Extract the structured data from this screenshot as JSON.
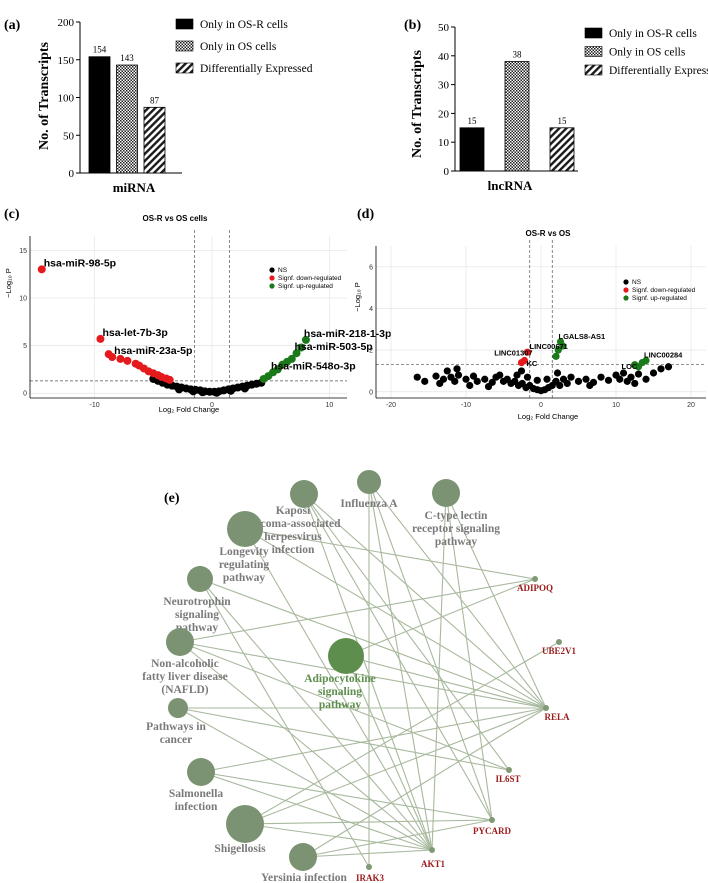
{
  "chart_data": [
    {
      "panel": "(a)",
      "type": "bar",
      "categories": [
        "miRNA"
      ],
      "series": [
        {
          "name": "Only in OS-R cells",
          "values": [
            154
          ],
          "pattern": "solid"
        },
        {
          "name": "Only in OS cells",
          "values": [
            143
          ],
          "pattern": "checker"
        },
        {
          "name": "Differentially Expressed",
          "values": [
            87
          ],
          "pattern": "hatch"
        }
      ],
      "xlabel": "miRNA",
      "ylabel": "No. of Transcripts",
      "ylim": [
        0,
        200
      ],
      "yticks": [
        "0",
        "50",
        "100",
        "150",
        "200"
      ],
      "legend": "top-right"
    },
    {
      "panel": "(b)",
      "type": "bar",
      "categories": [
        "lncRNA"
      ],
      "series": [
        {
          "name": "Only in OS-R cells",
          "values": [
            15
          ],
          "pattern": "solid"
        },
        {
          "name": "Only in OS cells",
          "values": [
            38
          ],
          "pattern": "checker"
        },
        {
          "name": "Differentially Expressed",
          "values": [
            15
          ],
          "pattern": "hatch"
        }
      ],
      "xlabel": "lncRNA",
      "ylabel": "No. of Transcripts",
      "ylim": [
        0,
        50
      ],
      "yticks": [
        "0",
        "10",
        "20",
        "30",
        "40",
        "50"
      ],
      "legend": "top-right"
    },
    {
      "panel": "(c)",
      "type": "scatter",
      "title": "OS-R vs OS cells",
      "xlabel": "Log₂ Fold Change",
      "ylabel": "−Log₁₀ P",
      "xlim": [
        -15.5,
        11.5
      ],
      "ylim": [
        -0.5,
        16.5
      ],
      "xticks": [
        "-10",
        "0",
        "10"
      ],
      "yticks": [
        "0",
        "5",
        "10",
        "15"
      ],
      "fc_cutoffs": [
        -1.5,
        1.5
      ],
      "p_cutoff": 1.3,
      "legend_entries": [
        "NS",
        "Signf. down-regulated",
        "Signf. up-regulated"
      ],
      "series": [
        {
          "name": "NS",
          "color": "#000000",
          "points": [
            [
              -5,
              1.5
            ],
            [
              -4.6,
              1.3
            ],
            [
              -4.2,
              1.1
            ],
            [
              -3.8,
              0.9
            ],
            [
              -3.4,
              0.8
            ],
            [
              -3,
              0.7
            ],
            [
              -2.6,
              0.6
            ],
            [
              -2.2,
              0.5
            ],
            [
              -1.8,
              0.4
            ],
            [
              -1.4,
              0.35
            ],
            [
              -1,
              0.3
            ],
            [
              -0.6,
              0.2
            ],
            [
              -0.2,
              0.15
            ],
            [
              0.2,
              0.15
            ],
            [
              0.6,
              0.2
            ],
            [
              1,
              0.3
            ],
            [
              1.4,
              0.4
            ],
            [
              1.8,
              0.5
            ],
            [
              2.2,
              0.6
            ],
            [
              2.6,
              0.7
            ],
            [
              3,
              0.8
            ],
            [
              3.4,
              0.9
            ],
            [
              3.8,
              1.0
            ],
            [
              4.2,
              1.1
            ],
            [
              -0.8,
              0.1
            ],
            [
              0.4,
              0.05
            ],
            [
              -1.6,
              0.2
            ],
            [
              1.6,
              0.25
            ],
            [
              2.8,
              0.5
            ],
            [
              -2.8,
              0.4
            ]
          ]
        },
        {
          "name": "Signf. down-regulated",
          "color": "#e41a1c",
          "points": [
            [
              -14.5,
              13
            ],
            [
              -9.5,
              5.7
            ],
            [
              -8.8,
              4.1
            ],
            [
              -8.5,
              3.8
            ],
            [
              -7.8,
              3.6
            ],
            [
              -7.2,
              3.4
            ],
            [
              -6.5,
              3.1
            ],
            [
              -6.2,
              2.9
            ],
            [
              -5.8,
              2.6
            ],
            [
              -5.4,
              2.3
            ],
            [
              -5,
              2.1
            ],
            [
              -4.6,
              1.9
            ],
            [
              -4.3,
              1.7
            ],
            [
              -3.9,
              1.55
            ],
            [
              -3.6,
              1.4
            ]
          ]
        },
        {
          "name": "Signf. up-regulated",
          "color": "#1a7a1a",
          "points": [
            [
              4.4,
              1.5
            ],
            [
              4.8,
              1.8
            ],
            [
              5.2,
              2.2
            ],
            [
              5.6,
              2.5
            ],
            [
              6,
              3.0
            ],
            [
              6.4,
              3.3
            ],
            [
              6.8,
              3.6
            ],
            [
              7.2,
              4.2
            ],
            [
              7.6,
              4.8
            ],
            [
              8,
              5.6
            ]
          ]
        }
      ],
      "labels": [
        {
          "text": "hsa-miR-98-5p",
          "x": -14.5,
          "y": 13
        },
        {
          "text": "hsa-let-7b-3p",
          "x": -9.5,
          "y": 5.7
        },
        {
          "text": "hsa-miR-23a-5p",
          "x": -8.5,
          "y": 3.8
        },
        {
          "text": "hsa-miR-218-1-3p",
          "x": 8,
          "y": 5.6
        },
        {
          "text": "hsa-miR-503-5p",
          "x": 7.2,
          "y": 4.2
        },
        {
          "text": "hsa-miR-548o-3p",
          "x": 5.2,
          "y": 2.2
        }
      ]
    },
    {
      "panel": "(d)",
      "type": "scatter",
      "title": "OS-R vs OS",
      "xlabel": "Log₂ Fold Change",
      "ylabel": "−Log₁₀ P",
      "xlim": [
        -22,
        22
      ],
      "ylim": [
        -0.3,
        7
      ],
      "xticks": [
        "-20",
        "-10",
        "0",
        "10",
        "20"
      ],
      "yticks": [
        "0",
        "2",
        "4",
        "6"
      ],
      "fc_cutoffs": [
        -1.5,
        1.5
      ],
      "p_cutoff": 1.3,
      "legend_entries": [
        "NS",
        "Signf. down-regulated",
        "Signf. up-regulated"
      ],
      "series": [
        {
          "name": "NS",
          "color": "#000000",
          "points": [
            [
              -16.5,
              0.7
            ],
            [
              -15.5,
              0.5
            ],
            [
              -14,
              0.75
            ],
            [
              -13,
              0.6
            ],
            [
              -12.5,
              1.0
            ],
            [
              -12,
              0.7
            ],
            [
              -11.5,
              0.5
            ],
            [
              -11,
              0.8
            ],
            [
              -10,
              0.6
            ],
            [
              -9,
              0.75
            ],
            [
              -8.5,
              0.5
            ],
            [
              -7.5,
              0.6
            ],
            [
              -6.5,
              0.45
            ],
            [
              -6,
              0.7
            ],
            [
              -5.5,
              0.8
            ],
            [
              -5,
              0.5
            ],
            [
              -4.5,
              0.6
            ],
            [
              -4,
              0.4
            ],
            [
              -3.5,
              0.5
            ],
            [
              -3,
              0.3
            ],
            [
              -2.5,
              0.4
            ],
            [
              -2,
              0.2
            ],
            [
              -1.5,
              0.3
            ],
            [
              -1,
              0.15
            ],
            [
              -0.5,
              0.1
            ],
            [
              0,
              0.05
            ],
            [
              0.5,
              0.1
            ],
            [
              1,
              0.2
            ],
            [
              1.5,
              0.3
            ],
            [
              2,
              0.5
            ],
            [
              2.5,
              0.3
            ],
            [
              3,
              0.6
            ],
            [
              3.5,
              0.4
            ],
            [
              4,
              0.7
            ],
            [
              5,
              0.5
            ],
            [
              6,
              0.6
            ],
            [
              7,
              0.45
            ],
            [
              8,
              0.7
            ],
            [
              9,
              0.55
            ],
            [
              10,
              0.8
            ],
            [
              10.5,
              0.6
            ],
            [
              11,
              0.9
            ],
            [
              11.5,
              0.5
            ],
            [
              12,
              0.7
            ],
            [
              13,
              0.85
            ],
            [
              14,
              0.6
            ],
            [
              15,
              0.9
            ],
            [
              16,
              1.1
            ],
            [
              17,
              1.2
            ],
            [
              -13.5,
              0.4
            ],
            [
              -9.5,
              0.3
            ],
            [
              -7,
              0.25
            ],
            [
              6.5,
              0.3
            ],
            [
              12.5,
              0.4
            ],
            [
              -11.2,
              1.1
            ],
            [
              -2.6,
              1.0
            ],
            [
              -3.2,
              0.8
            ],
            [
              -1.8,
              0.7
            ],
            [
              0.8,
              0.6
            ],
            [
              -0.5,
              0.55
            ],
            [
              2.2,
              0.9
            ]
          ]
        },
        {
          "name": "Signf. down-regulated",
          "color": "#e41a1c",
          "points": [
            [
              -1.8,
              1.9
            ],
            [
              -2.2,
              1.5
            ],
            [
              -2.6,
              1.4
            ]
          ]
        },
        {
          "name": "Signf. up-regulated",
          "color": "#1a7a1a",
          "points": [
            [
              2,
              1.7
            ],
            [
              2.3,
              2.0
            ],
            [
              2.6,
              2.4
            ],
            [
              2.9,
              2.2
            ],
            [
              12.5,
              1.3
            ],
            [
              13,
              1.2
            ],
            [
              13.5,
              1.4
            ],
            [
              14,
              1.5
            ]
          ]
        }
      ],
      "labels": [
        {
          "text": "LINC00671",
          "x": -1.8,
          "y": 1.9
        },
        {
          "text": "LINC01307",
          "x": -6.5,
          "y": 1.6
        },
        {
          "text": "LGALS8-AS1",
          "x": 2.6,
          "y": 2.4
        },
        {
          "text": "LINC00284",
          "x": 14,
          "y": 1.5
        },
        {
          "text": "KC",
          "x": -2.2,
          "y": 1.1
        },
        {
          "text": "LOC",
          "x": 11,
          "y": 0.95
        }
      ]
    }
  ],
  "panel_labels": [
    "(a)",
    "(b)",
    "(c)",
    "(d)",
    "(e)"
  ],
  "network": {
    "panel": "(e)",
    "pathways": [
      {
        "label": "Kaposi sarcoma-associated herpesvirus infection",
        "display": [
          "Kaposi",
          "sarcoma-associated",
          "herpesvirus",
          "infection"
        ],
        "color": "#7b9372"
      },
      {
        "label": "Influenza A",
        "display": [
          "Influenza A"
        ],
        "color": "#7b9372"
      },
      {
        "label": "C-type lectin receptor signaling pathway",
        "display": [
          "C-type lectin",
          "receptor signaling",
          "pathway"
        ],
        "color": "#7b9372"
      },
      {
        "label": "Longevity regulating pathway",
        "display": [
          "Longevity",
          "regulating",
          "pathway"
        ],
        "color": "#7b9372"
      },
      {
        "label": "Neurotrophin signaling pathway",
        "display": [
          "Neurotrophin",
          "signaling",
          "pathway"
        ],
        "color": "#7b9372"
      },
      {
        "label": "Non-alcoholic fatty liver disease (NAFLD)",
        "display": [
          "Non-alcoholic",
          "fatty liver disease",
          "(NAFLD)"
        ],
        "color": "#7b9372"
      },
      {
        "label": "Adipocytokine signaling pathway",
        "display": [
          "Adipocytokine",
          "signaling",
          "pathway"
        ],
        "color": "#5e8e4e"
      },
      {
        "label": "Pathways in cancer",
        "display": [
          "Pathways in",
          "cancer"
        ],
        "color": "#7b9372"
      },
      {
        "label": "Salmonella infection",
        "display": [
          "Salmonella",
          "infection"
        ],
        "color": "#7b9372"
      },
      {
        "label": "Shigellosis",
        "display": [
          "Shigellosis"
        ],
        "color": "#7b9372"
      },
      {
        "label": "Yersinia infection",
        "display": [
          "Yersinia infection"
        ],
        "color": "#7b9372"
      }
    ],
    "genes": [
      "ADIPOQ",
      "UBE2V1",
      "RELA",
      "IL6ST",
      "PYCARD",
      "AKT1",
      "IRAK3"
    ],
    "gene_color": "#9b1b1b",
    "edge_color": "#a8b99e",
    "edges": [
      [
        "Kaposi sarcoma-associated herpesvirus infection",
        "RELA"
      ],
      [
        "Kaposi sarcoma-associated herpesvirus infection",
        "AKT1"
      ],
      [
        "Kaposi sarcoma-associated herpesvirus infection",
        "IL6ST"
      ],
      [
        "Kaposi sarcoma-associated herpesvirus infection",
        "PYCARD"
      ],
      [
        "Influenza A",
        "RELA"
      ],
      [
        "Influenza A",
        "AKT1"
      ],
      [
        "Influenza A",
        "PYCARD"
      ],
      [
        "Influenza A",
        "IRAK3"
      ],
      [
        "C-type lectin receptor signaling pathway",
        "RELA"
      ],
      [
        "C-type lectin receptor signaling pathway",
        "AKT1"
      ],
      [
        "C-type lectin receptor signaling pathway",
        "PYCARD"
      ],
      [
        "Longevity regulating pathway",
        "ADIPOQ"
      ],
      [
        "Longevity regulating pathway",
        "RELA"
      ],
      [
        "Longevity regulating pathway",
        "AKT1"
      ],
      [
        "Neurotrophin signaling pathway",
        "RELA"
      ],
      [
        "Neurotrophin signaling pathway",
        "AKT1"
      ],
      [
        "Neurotrophin signaling pathway",
        "IRAK3"
      ],
      [
        "Non-alcoholic fatty liver disease (NAFLD)",
        "ADIPOQ"
      ],
      [
        "Non-alcoholic fatty liver disease (NAFLD)",
        "RELA"
      ],
      [
        "Non-alcoholic fatty liver disease (NAFLD)",
        "AKT1"
      ],
      [
        "Non-alcoholic fatty liver disease (NAFLD)",
        "IL6ST"
      ],
      [
        "Adipocytokine signaling pathway",
        "ADIPOQ"
      ],
      [
        "Adipocytokine signaling pathway",
        "RELA"
      ],
      [
        "Adipocytokine signaling pathway",
        "AKT1"
      ],
      [
        "Pathways in cancer",
        "RELA"
      ],
      [
        "Pathways in cancer",
        "AKT1"
      ],
      [
        "Pathways in cancer",
        "IL6ST"
      ],
      [
        "Salmonella infection",
        "RELA"
      ],
      [
        "Salmonella infection",
        "AKT1"
      ],
      [
        "Salmonella infection",
        "PYCARD"
      ],
      [
        "Shigellosis",
        "RELA"
      ],
      [
        "Shigellosis",
        "AKT1"
      ],
      [
        "Shigellosis",
        "PYCARD"
      ],
      [
        "Shigellosis",
        "UBE2V1"
      ],
      [
        "Yersinia infection",
        "RELA"
      ],
      [
        "Yersinia infection",
        "AKT1"
      ],
      [
        "Yersinia infection",
        "PYCARD"
      ]
    ]
  }
}
